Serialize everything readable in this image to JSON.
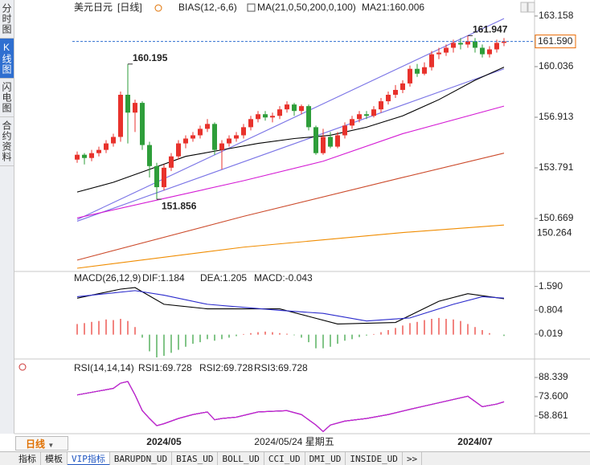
{
  "sidebar_tabs": [
    "分时图",
    "K线图",
    "闪电图",
    "合约资料"
  ],
  "period_selector": "日线",
  "bottom_tabs": [
    "指标",
    "模板",
    "VIP指标",
    "BARUPDN_UD",
    "BIAS_UD",
    "BOLL_UD",
    "CCI_UD",
    "DMI_UD",
    "INSIDE_UD",
    ">>"
  ],
  "active_tab": 2,
  "chart_data": [
    {
      "type": "candlestick",
      "title": "美元日元",
      "period": "[日线]",
      "indicators": [
        "BIAS(12,-6,6)",
        "MA(21,0,50,200,0,100)",
        "MA21:160.006"
      ],
      "categories": [
        null,
        null,
        null,
        null,
        null,
        null,
        null,
        null,
        null,
        null,
        null,
        null,
        "2024/05",
        null,
        null,
        null,
        null,
        null,
        null,
        null,
        null,
        null,
        null,
        null,
        null,
        null,
        null,
        null,
        null,
        null,
        null,
        null,
        null,
        null,
        null,
        null,
        null,
        null,
        null,
        null,
        null,
        null,
        null,
        null,
        null,
        null,
        null,
        null,
        null,
        null,
        null,
        null,
        null,
        null,
        null,
        "2024/07",
        null,
        null,
        null,
        null
      ],
      "cursor_label": {
        "x": 30,
        "text": "2024/05/24 星期五"
      },
      "open": [
        154.3,
        154.6,
        154.4,
        154.7,
        154.9,
        155.3,
        155.7,
        158.3,
        157.2,
        157.8,
        155.2,
        153.9,
        152.6,
        153.8,
        154.5,
        155.3,
        155.6,
        155.8,
        156.2,
        156.5,
        154.9,
        155.3,
        155.6,
        155.8,
        156.3,
        156.8,
        157.1,
        156.9,
        157.0,
        157.4,
        157.7,
        157.3,
        157.6,
        156.3,
        154.7,
        155.7,
        155.1,
        155.8,
        156.4,
        156.8,
        157.1,
        157.0,
        157.4,
        157.9,
        158.3,
        158.6,
        159.0,
        159.9,
        159.6,
        160.0,
        160.8,
        160.9,
        161.2,
        161.5,
        161.4,
        161.6,
        161.2,
        160.8,
        161.1,
        161.5
      ],
      "high": [
        154.8,
        154.7,
        154.9,
        155.1,
        155.5,
        155.9,
        158.5,
        160.195,
        158.0,
        157.9,
        155.4,
        154.1,
        154.0,
        154.7,
        155.5,
        155.8,
        156.0,
        156.4,
        156.8,
        156.6,
        155.5,
        155.8,
        156.0,
        156.5,
        157.0,
        157.3,
        157.3,
        157.2,
        157.6,
        157.9,
        157.8,
        157.7,
        157.7,
        156.4,
        156.2,
        156.0,
        156.0,
        156.6,
        157.0,
        157.3,
        157.3,
        157.6,
        158.1,
        158.5,
        158.9,
        159.2,
        160.1,
        160.2,
        160.3,
        161.0,
        161.2,
        161.4,
        161.7,
        161.8,
        161.947,
        161.8,
        161.4,
        161.3,
        161.7,
        161.8
      ],
      "low": [
        154.1,
        154.0,
        154.2,
        154.5,
        154.7,
        155.1,
        155.4,
        155.3,
        156.0,
        154.9,
        153.2,
        151.856,
        152.4,
        153.6,
        154.3,
        155.0,
        155.4,
        155.6,
        156.0,
        154.6,
        153.7,
        155.1,
        155.4,
        155.6,
        156.1,
        156.6,
        156.7,
        156.6,
        156.8,
        157.2,
        157.0,
        157.1,
        156.1,
        154.6,
        154.6,
        155.0,
        155.0,
        155.6,
        156.2,
        156.6,
        156.8,
        156.9,
        157.2,
        157.7,
        158.1,
        158.4,
        158.8,
        159.4,
        159.5,
        159.8,
        160.5,
        160.7,
        160.9,
        161.1,
        161.2,
        160.9,
        160.6,
        160.6,
        160.9,
        161.3
      ],
      "close": [
        154.6,
        154.4,
        154.7,
        154.9,
        155.3,
        155.7,
        158.3,
        157.2,
        157.8,
        155.2,
        153.9,
        152.6,
        153.8,
        154.5,
        155.3,
        155.6,
        155.8,
        156.2,
        156.5,
        154.9,
        155.3,
        155.6,
        155.8,
        156.3,
        156.8,
        157.1,
        156.9,
        157.0,
        157.4,
        157.7,
        157.3,
        157.6,
        156.3,
        154.7,
        155.7,
        155.1,
        155.8,
        156.4,
        156.8,
        157.1,
        157.0,
        157.4,
        157.9,
        158.3,
        158.6,
        159.0,
        159.9,
        159.6,
        160.0,
        160.8,
        160.9,
        161.2,
        161.5,
        161.4,
        161.6,
        161.2,
        160.8,
        161.1,
        161.5,
        161.59
      ],
      "up_color": "#e8322c",
      "down_color": "#2e9e3a",
      "lines": [
        {
          "color": "#7a74e6",
          "x": [
            0,
            59
          ],
          "values": [
            150.6,
            163.0
          ]
        },
        {
          "color": "#7a74e6",
          "x": [
            0,
            59
          ],
          "values": [
            150.5,
            159.9
          ]
        },
        {
          "color": "#000000",
          "x": [
            0,
            5,
            10,
            15,
            20,
            25,
            30,
            35,
            40,
            45,
            50,
            55,
            59
          ],
          "values": [
            152.3,
            152.9,
            153.7,
            154.5,
            154.9,
            155.3,
            155.6,
            155.8,
            156.3,
            157.0,
            158.0,
            159.2,
            160.006
          ]
        },
        {
          "color": "#d41ad4",
          "x": [
            0,
            12,
            23,
            34,
            45,
            59
          ],
          "values": [
            150.7,
            151.9,
            153.0,
            154.2,
            155.9,
            157.6
          ]
        },
        {
          "color": "#cc4b2c",
          "x": [
            0,
            23,
            45,
            59
          ],
          "values": [
            148.1,
            150.8,
            153.2,
            154.7
          ]
        },
        {
          "color": "#f08c00",
          "x": [
            0,
            23,
            45,
            59
          ],
          "values": [
            147.6,
            148.9,
            149.8,
            150.264
          ]
        }
      ],
      "annotations": [
        {
          "x": 7,
          "value": 160.195,
          "color": "#e03030",
          "position": "above"
        },
        {
          "x": 11,
          "value": 151.856,
          "color": "#3a9a3a",
          "position": "below"
        },
        {
          "x": 54,
          "value": 161.947,
          "color": "#e03030",
          "position": "above"
        }
      ],
      "current_price": {
        "value": 161.59,
        "label": "161.590",
        "color": "#ea6a00"
      },
      "end_label": {
        "value": 150.264,
        "color": "#f08c00"
      },
      "ylim": [
        147.55,
        163.75
      ],
      "yticks": [
        163.158,
        160.036,
        156.913,
        153.791,
        150.669
      ]
    },
    {
      "type": "macd",
      "title": "MACD(26,12,9)",
      "series": [
        {
          "name": "DIF:1.184",
          "color": "#000000",
          "x": [
            0,
            6,
            8,
            12,
            18,
            28,
            32,
            36,
            44,
            50,
            54,
            59
          ],
          "values": [
            1.2,
            1.5,
            1.55,
            1.0,
            0.85,
            0.85,
            0.6,
            0.35,
            0.4,
            1.1,
            1.35,
            1.184
          ]
        },
        {
          "name": "DEA:1.205",
          "color": "#2a2acc",
          "x": [
            0,
            8,
            12,
            18,
            28,
            34,
            40,
            46,
            52,
            56,
            59
          ],
          "values": [
            1.25,
            1.45,
            1.3,
            1.0,
            0.8,
            0.7,
            0.45,
            0.55,
            1.0,
            1.25,
            1.205
          ]
        }
      ],
      "histogram": {
        "name": "MACD:-0.043",
        "color": "#d41ad4",
        "up_color": "#e8322c",
        "down_color": "#2e9e3a",
        "values": [
          0.35,
          0.38,
          0.42,
          0.45,
          0.5,
          0.48,
          0.52,
          0.45,
          0.25,
          -0.1,
          -0.55,
          -0.75,
          -0.7,
          -0.6,
          -0.5,
          -0.4,
          -0.3,
          -0.25,
          -0.15,
          -0.2,
          -0.15,
          -0.1,
          -0.05,
          0.02,
          0.05,
          0.08,
          0.1,
          0.08,
          0.05,
          0.03,
          -0.02,
          -0.1,
          -0.25,
          -0.45,
          -0.45,
          -0.4,
          -0.3,
          -0.2,
          -0.15,
          -0.08,
          -0.03,
          0.02,
          0.08,
          0.15,
          0.22,
          0.3,
          0.38,
          0.42,
          0.48,
          0.52,
          0.55,
          0.52,
          0.5,
          0.45,
          0.35,
          0.25,
          0.15,
          0.05,
          0.0,
          -0.043
        ]
      },
      "ylim": [
        -0.75,
        1.95
      ],
      "yticks": [
        {
          "value": 1.59,
          "label": "1.590"
        },
        0.804,
        0.019
      ]
    },
    {
      "type": "line",
      "title": "RSI(14,14,14)",
      "series": [
        {
          "name": "RSI1:69.728",
          "color": "#000000",
          "x": [
            0,
            3,
            5,
            6,
            7,
            8,
            9,
            10,
            11,
            12,
            14,
            16,
            18,
            19,
            20,
            22,
            25,
            29,
            31,
            33,
            34,
            35,
            37,
            40,
            43,
            46,
            50,
            54,
            56,
            58,
            59
          ],
          "values": [
            75,
            78,
            80,
            84,
            85.3,
            75,
            63,
            57,
            51.5,
            53,
            57,
            60,
            62,
            56,
            57,
            58,
            62,
            63,
            60,
            52,
            47,
            52,
            55,
            57,
            60,
            64,
            69,
            74,
            66,
            68,
            69.728
          ]
        },
        {
          "name": "RSI2:69.728",
          "color": "#2a2acc",
          "x": [
            0,
            3,
            5,
            6,
            7,
            8,
            9,
            10,
            11,
            12,
            14,
            16,
            18,
            19,
            20,
            22,
            25,
            29,
            31,
            33,
            34,
            35,
            37,
            40,
            43,
            46,
            50,
            54,
            56,
            58,
            59
          ],
          "values": [
            75,
            78,
            80,
            84,
            85.3,
            75,
            63,
            57,
            51.5,
            53,
            57,
            60,
            62,
            56,
            57,
            58,
            62,
            63,
            60,
            52,
            47,
            52,
            55,
            57,
            60,
            64,
            69,
            74,
            66,
            68,
            69.728
          ]
        },
        {
          "name": "RSI3:69.728",
          "color": "#d41ad4",
          "x": [
            0,
            3,
            5,
            6,
            7,
            8,
            9,
            10,
            11,
            12,
            14,
            16,
            18,
            19,
            20,
            22,
            25,
            29,
            31,
            33,
            34,
            35,
            37,
            40,
            43,
            46,
            50,
            54,
            56,
            58,
            59
          ],
          "values": [
            75,
            78,
            80,
            84,
            85.3,
            75,
            63,
            57,
            51.5,
            53,
            57,
            60,
            62,
            56,
            57,
            58,
            62,
            63,
            60,
            52,
            47,
            52,
            55,
            57,
            60,
            64,
            69,
            74,
            66,
            68,
            69.728
          ]
        }
      ],
      "ylim": [
        46.6,
        99.4
      ],
      "yticks": [
        88.339,
        {
          "value": 73.6,
          "label": "73.600"
        },
        58.861
      ]
    }
  ]
}
